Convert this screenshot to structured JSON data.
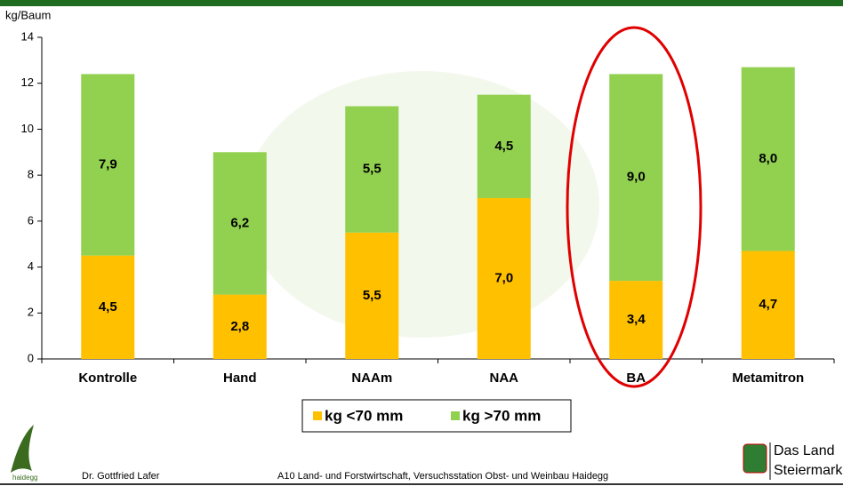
{
  "chart_data": {
    "type": "stacked-bar",
    "y_label": "kg/Baum",
    "categories": [
      "Kontrolle",
      "Hand",
      "NAAm",
      "NAA",
      "BA",
      "Metamitron"
    ],
    "series": [
      {
        "name": "kg <70 mm",
        "color": "#ffc000",
        "values": [
          4.5,
          2.8,
          5.5,
          7.0,
          3.4,
          4.7
        ],
        "value_labels": [
          "4,5",
          "2,8",
          "5,5",
          "7,0",
          "3,4",
          "4,7"
        ]
      },
      {
        "name": "kg >70 mm",
        "color": "#92d050",
        "values": [
          7.9,
          6.2,
          5.5,
          4.5,
          9.0,
          8.0
        ],
        "value_labels": [
          "7,9",
          "6,2",
          "5,5",
          "4,5",
          "9,0",
          "8,0"
        ]
      }
    ],
    "ylim": [
      0,
      14
    ],
    "yticks": [
      0,
      2,
      4,
      6,
      8,
      10,
      12,
      14
    ],
    "grid": false
  },
  "footer": {
    "logo_text": "haidegg",
    "author": "Dr. Gottfried Lafer",
    "institution": "A10 Land- und Forstwirtschaft, Versuchsstation Obst- und Weinbau Haidegg",
    "brand_line1": "Das Land",
    "brand_line2": "Steiermark"
  }
}
